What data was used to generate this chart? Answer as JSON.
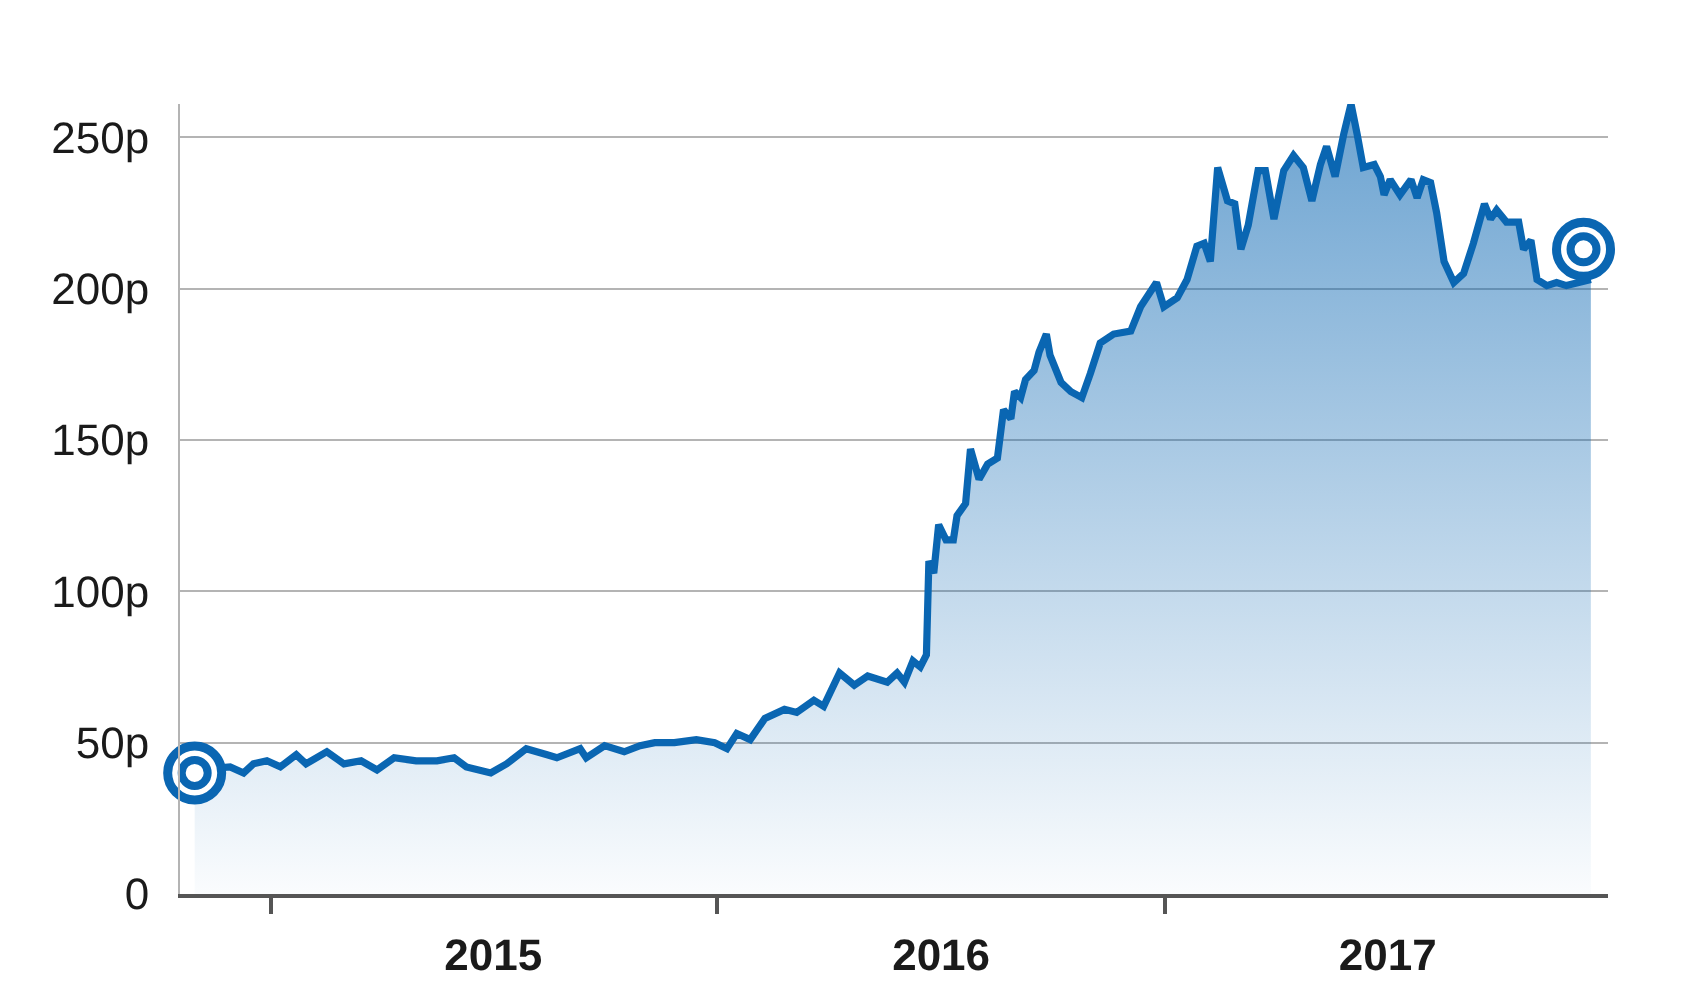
{
  "chart_data": {
    "type": "area",
    "x": [
      "2014-10-31",
      "2014-11-29",
      "2014-12-10",
      "2014-12-18",
      "2014-12-29",
      "2015-01-09",
      "2015-01-22",
      "2015-01-30",
      "2015-02-16",
      "2015-03-02",
      "2015-03-16",
      "2015-03-29",
      "2015-04-12",
      "2015-04-30",
      "2015-05-17",
      "2015-05-31",
      "2015-06-10",
      "2015-06-30",
      "2015-07-13",
      "2015-07-29",
      "2015-08-15",
      "2015-08-23",
      "2015-09-11",
      "2015-09-16",
      "2015-10-01",
      "2015-10-17",
      "2015-10-30",
      "2015-11-11",
      "2015-11-27",
      "2015-12-15",
      "2015-12-30",
      "2016-01-09",
      "2016-01-17",
      "2016-01-28",
      "2016-02-09",
      "2016-02-25",
      "2016-03-06",
      "2016-03-20",
      "2016-03-28",
      "2016-04-10",
      "2016-04-22",
      "2016-05-03",
      "2016-05-19",
      "2016-05-27",
      "2016-06-02",
      "2016-06-09",
      "2016-06-15",
      "2016-06-20",
      "2016-06-22",
      "2016-06-26",
      "2016-06-30",
      "2016-07-06",
      "2016-07-12",
      "2016-07-15",
      "2016-07-22",
      "2016-07-26",
      "2016-08-02",
      "2016-08-09",
      "2016-08-17",
      "2016-08-22",
      "2016-08-28",
      "2016-08-31",
      "2016-09-05",
      "2016-09-09",
      "2016-09-16",
      "2016-09-20",
      "2016-09-26",
      "2016-09-29",
      "2016-10-08",
      "2016-10-16",
      "2016-10-25",
      "2016-11-01",
      "2016-11-09",
      "2016-11-20",
      "2016-12-04",
      "2016-12-12",
      "2016-12-25",
      "2016-12-31",
      "2017-01-11",
      "2017-01-19",
      "2017-01-27",
      "2017-02-02",
      "2017-02-07",
      "2017-02-13",
      "2017-02-21",
      "2017-02-27",
      "2017-03-04",
      "2017-03-10",
      "2017-03-18",
      "2017-03-24",
      "2017-03-31",
      "2017-04-08",
      "2017-04-16",
      "2017-04-24",
      "2017-05-01",
      "2017-05-08",
      "2017-05-13",
      "2017-05-20",
      "2017-05-27",
      "2017-06-02",
      "2017-06-07",
      "2017-06-12",
      "2017-06-21",
      "2017-06-26",
      "2017-06-29",
      "2017-07-04",
      "2017-07-12",
      "2017-07-21",
      "2017-07-26",
      "2017-07-31",
      "2017-08-06",
      "2017-08-11",
      "2017-08-17",
      "2017-08-25",
      "2017-09-02",
      "2017-09-10",
      "2017-09-19",
      "2017-09-24",
      "2017-09-29",
      "2017-10-07",
      "2017-10-17",
      "2017-10-21",
      "2017-10-27",
      "2017-11-01",
      "2017-11-09",
      "2017-11-17",
      "2017-11-25",
      "2017-12-15"
    ],
    "series": [
      {
        "color": "#0a66b2",
        "values": [
          41,
          42,
          40,
          43,
          44,
          42,
          46,
          43,
          47,
          43,
          44,
          41,
          45,
          44,
          44,
          45,
          42,
          40,
          43,
          48,
          46,
          45,
          48,
          45,
          49,
          47,
          49,
          50,
          50,
          51,
          50,
          48,
          53,
          51,
          58,
          61,
          60,
          64,
          62,
          73,
          69,
          72,
          70,
          73,
          70,
          77,
          75,
          79,
          110,
          106,
          122,
          117,
          117,
          125,
          129,
          147,
          137,
          142,
          144,
          160,
          157,
          166,
          164,
          170,
          173,
          179,
          185,
          178,
          169,
          166,
          164,
          172,
          182,
          185,
          186,
          194,
          202,
          194,
          197,
          203,
          214,
          215,
          209,
          240,
          229,
          228,
          213,
          221,
          239,
          239,
          223,
          239,
          244,
          240,
          229,
          241,
          247,
          237,
          251,
          261,
          251,
          240,
          241,
          237,
          231,
          236,
          231,
          236,
          230,
          236,
          235,
          225,
          209,
          202,
          205,
          215,
          228,
          223,
          226,
          222,
          222,
          213,
          216,
          203,
          201,
          202,
          201,
          203
        ]
      },
      {
        "type": "scatter",
        "x": [
          "2014-10-31",
          "2017-12-09"
        ],
        "color": "#0a66b2",
        "marker": "circle",
        "values": [
          40,
          213
        ]
      }
    ],
    "xlim": [
      "2014-10-19",
      "2017-12-29"
    ],
    "xticks": [
      {
        "value": "2015-01-01",
        "label": null
      },
      {
        "value": "2015-07-02",
        "label": "2015"
      },
      {
        "value": "2016-01-01",
        "label": null
      },
      {
        "value": "2016-07-02",
        "label": "2016"
      },
      {
        "value": "2017-01-01",
        "label": null
      },
      {
        "value": "2017-07-02",
        "label": "2017"
      }
    ],
    "ylim": [
      0,
      261
    ],
    "yticks": [
      {
        "value": 0,
        "label": "0"
      },
      {
        "value": 50,
        "label": "50p"
      },
      {
        "value": 100,
        "label": "100p"
      },
      {
        "value": 150,
        "label": "150p"
      },
      {
        "value": 200,
        "label": "200p"
      },
      {
        "value": 250,
        "label": "250p"
      }
    ],
    "grid": "y",
    "line_style": "solid"
  }
}
